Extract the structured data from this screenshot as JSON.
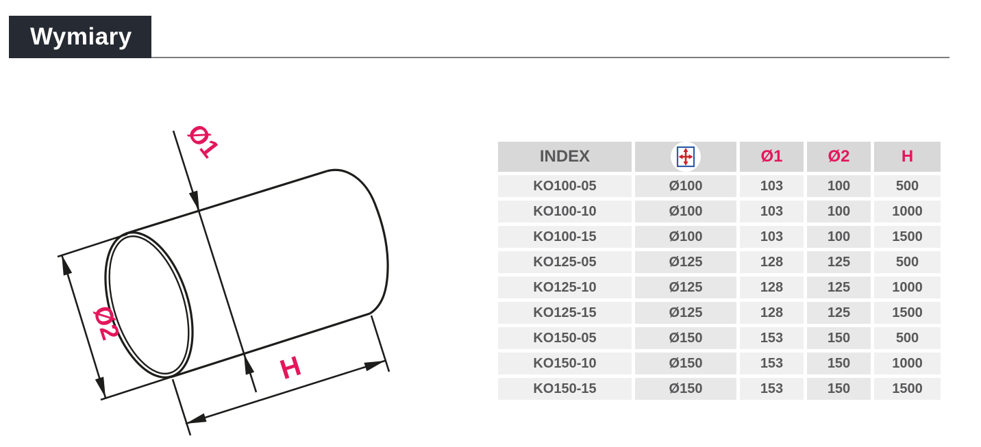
{
  "page": {
    "title": "Wymiary"
  },
  "colors": {
    "accent_pink": "#e4175c",
    "title_bg": "#262a32",
    "rule_gray": "#7d7d7d",
    "header_bg": "#d8d8d8",
    "column_light": "#f0f0f0",
    "column_dark": "#e8e8e8",
    "text_dark": "#58585a",
    "drawing_black": "#1d1d1b",
    "icon_blue": "#2f5ca8",
    "icon_red": "#cc2127"
  },
  "diagram": {
    "labels": {
      "d1": "Ø1",
      "d2": "Ø2",
      "h": "H"
    }
  },
  "table": {
    "columns": [
      {
        "key": "index",
        "label": "INDEX"
      },
      {
        "key": "diameter",
        "label": "",
        "icon": "dimension-cross-icon"
      },
      {
        "key": "d1",
        "label": "Ø1"
      },
      {
        "key": "d2",
        "label": "Ø2"
      },
      {
        "key": "h",
        "label": "H"
      }
    ],
    "rows": [
      [
        "KO100-05",
        "Ø100",
        "103",
        "100",
        "500"
      ],
      [
        "KO100-10",
        "Ø100",
        "103",
        "100",
        "1000"
      ],
      [
        "KO100-15",
        "Ø100",
        "103",
        "100",
        "1500"
      ],
      [
        "KO125-05",
        "Ø125",
        "128",
        "125",
        "500"
      ],
      [
        "KO125-10",
        "Ø125",
        "128",
        "125",
        "1000"
      ],
      [
        "KO125-15",
        "Ø125",
        "128",
        "125",
        "1500"
      ],
      [
        "KO150-05",
        "Ø150",
        "153",
        "150",
        "500"
      ],
      [
        "KO150-10",
        "Ø150",
        "153",
        "150",
        "1000"
      ],
      [
        "KO150-15",
        "Ø150",
        "153",
        "150",
        "1500"
      ]
    ]
  }
}
